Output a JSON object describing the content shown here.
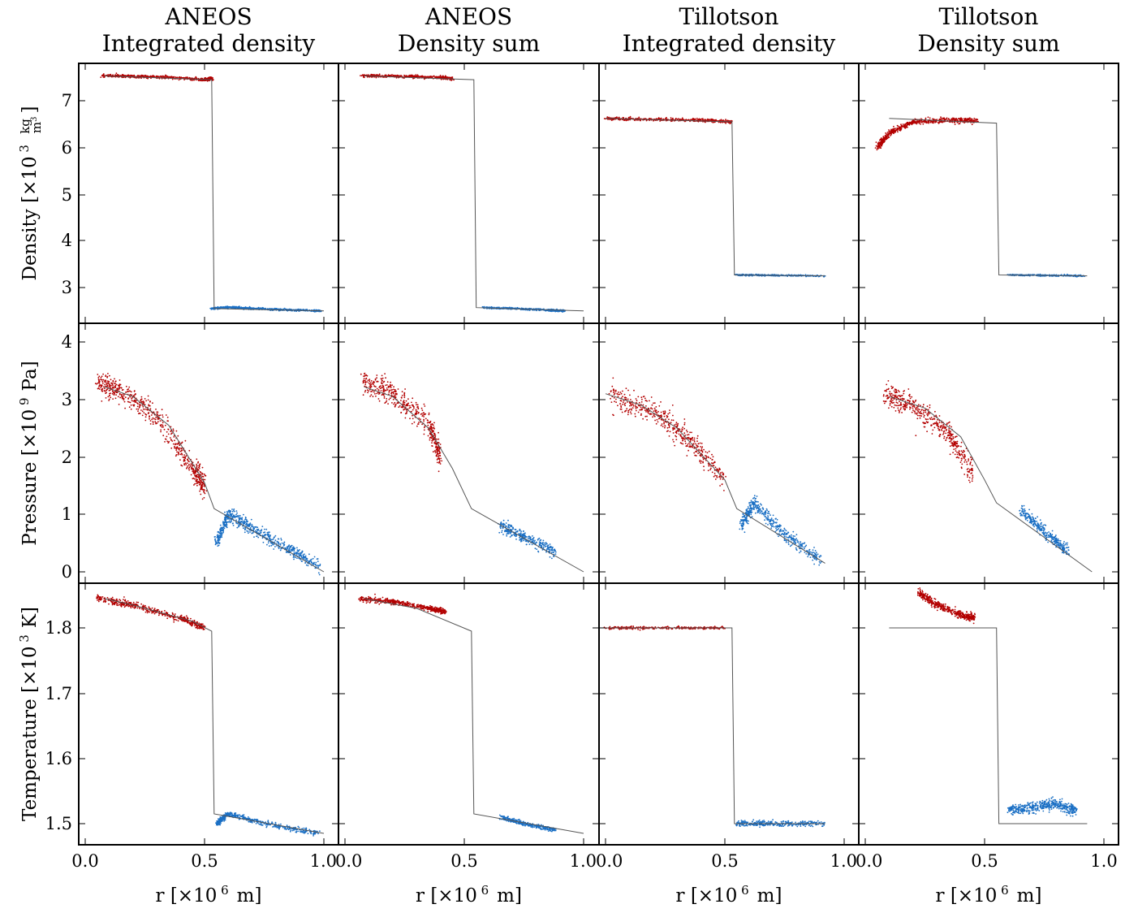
{
  "chart_data": {
    "type": "scatter",
    "columns": [
      {
        "title": [
          "ANEOS",
          "Integrated density"
        ]
      },
      {
        "title": [
          "ANEOS",
          "Density sum"
        ]
      },
      {
        "title": [
          "Tillotson",
          "Integrated density"
        ]
      },
      {
        "title": [
          "Tillotson",
          "Density sum"
        ]
      }
    ],
    "rows": [
      {
        "ylabel": "Density [×10 3  kg/m3]",
        "ylabel_main": "Density [×10",
        "ylabel_exp": "3",
        "ylabel_unit_num": "kg",
        "ylabel_unit_den": "m",
        "ylabel_unit_den_exp": "3",
        "yticks": [
          "3",
          "4",
          "5",
          "6",
          "7"
        ],
        "ylim": [
          2.3,
          7.75
        ]
      },
      {
        "ylabel": "Pressure [×10 9  Pa]",
        "ylabel_main": "Pressure [×10",
        "ylabel_exp": "9",
        "ylabel_unit": "Pa]",
        "yticks": [
          "0",
          "1",
          "2",
          "3",
          "4"
        ],
        "ylim": [
          -0.1,
          4.2
        ]
      },
      {
        "ylabel": "Temperature [×10 3  K]",
        "ylabel_main": "Temperature [×10",
        "ylabel_exp": "3",
        "ylabel_unit": "K]",
        "yticks": [
          "1.5",
          "1.6",
          "1.7",
          "1.8"
        ],
        "ylim": [
          1.47,
          1.86
        ]
      }
    ],
    "xlabel": "r [×10 6  m]",
    "xlabel_main": "r [×10",
    "xlabel_exp": "6",
    "xlabel_unit": "m]",
    "xticks": [
      "0.0",
      "0.5",
      "1.0"
    ],
    "xlim": [
      -0.02,
      1.03
    ],
    "colors": {
      "inner": "#b30000",
      "outer": "#1a6fc4",
      "reference": "#555555"
    },
    "series_desc": [
      "inner particles (red)",
      "outer particles (blue)",
      "reference profile (gray line)"
    ],
    "panels": [
      [
        {
          "ref": [
            [
              0.08,
              7.53
            ],
            [
              0.53,
              7.45
            ],
            [
              0.54,
              2.55
            ],
            [
              1.0,
              2.5
            ]
          ],
          "red": [
            [
              0.07,
              7.54
            ],
            [
              0.2,
              7.52
            ],
            [
              0.35,
              7.5
            ],
            [
              0.5,
              7.45
            ],
            [
              0.53,
              7.48
            ]
          ],
          "red_spread": 0.03,
          "blue": [
            [
              0.53,
              2.55
            ],
            [
              0.6,
              2.58
            ],
            [
              0.7,
              2.55
            ],
            [
              0.85,
              2.52
            ],
            [
              0.99,
              2.5
            ]
          ],
          "blue_spread": 0.02
        },
        {
          "ref": [
            [
              0.08,
              7.53
            ],
            [
              0.54,
              7.45
            ],
            [
              0.55,
              2.57
            ],
            [
              1.0,
              2.5
            ]
          ],
          "red": [
            [
              0.07,
              7.54
            ],
            [
              0.25,
              7.52
            ],
            [
              0.4,
              7.5
            ],
            [
              0.45,
              7.47
            ]
          ],
          "red_spread": 0.03,
          "blue": [
            [
              0.58,
              2.57
            ],
            [
              0.7,
              2.55
            ],
            [
              0.85,
              2.52
            ],
            [
              0.92,
              2.5
            ]
          ],
          "blue_spread": 0.02
        },
        {
          "ref": [
            [
              0.0,
              6.62
            ],
            [
              0.53,
              6.55
            ],
            [
              0.54,
              3.27
            ],
            [
              0.92,
              3.25
            ]
          ],
          "red": [
            [
              0.0,
              6.62
            ],
            [
              0.2,
              6.6
            ],
            [
              0.4,
              6.58
            ],
            [
              0.53,
              6.55
            ]
          ],
          "red_spread": 0.03,
          "blue": [
            [
              0.54,
              3.27
            ],
            [
              0.7,
              3.26
            ],
            [
              0.92,
              3.25
            ]
          ],
          "blue_spread": 0.015
        },
        {
          "ref": [
            [
              0.1,
              6.62
            ],
            [
              0.55,
              6.52
            ],
            [
              0.56,
              3.27
            ],
            [
              0.93,
              3.25
            ]
          ],
          "red": [
            [
              0.05,
              6.0
            ],
            [
              0.1,
              6.3
            ],
            [
              0.2,
              6.55
            ],
            [
              0.35,
              6.58
            ],
            [
              0.47,
              6.57
            ]
          ],
          "red_spread": 0.06,
          "blue": [
            [
              0.6,
              3.27
            ],
            [
              0.75,
              3.26
            ],
            [
              0.92,
              3.25
            ]
          ],
          "blue_spread": 0.015
        }
      ],
      [
        {
          "ref": [
            [
              0.08,
              3.22
            ],
            [
              0.2,
              3.05
            ],
            [
              0.35,
              2.55
            ],
            [
              0.5,
              1.55
            ],
            [
              0.54,
              1.1
            ],
            [
              1.0,
              0.0
            ]
          ],
          "red": [
            [
              0.05,
              3.3
            ],
            [
              0.15,
              3.15
            ],
            [
              0.3,
              2.7
            ],
            [
              0.45,
              1.8
            ],
            [
              0.5,
              1.5
            ]
          ],
          "red_spread": 0.2,
          "blue": [
            [
              0.55,
              0.5
            ],
            [
              0.6,
              1.0
            ],
            [
              0.7,
              0.75
            ],
            [
              0.85,
              0.4
            ],
            [
              0.98,
              0.1
            ]
          ],
          "blue_spread": 0.12
        },
        {
          "ref": [
            [
              0.08,
              3.22
            ],
            [
              0.2,
              3.05
            ],
            [
              0.35,
              2.5
            ],
            [
              0.45,
              1.8
            ],
            [
              0.53,
              1.1
            ],
            [
              1.0,
              0.0
            ]
          ],
          "red": [
            [
              0.07,
              3.3
            ],
            [
              0.2,
              3.1
            ],
            [
              0.35,
              2.6
            ],
            [
              0.4,
              2.0
            ]
          ],
          "red_spread": 0.2,
          "blue": [
            [
              0.65,
              0.8
            ],
            [
              0.75,
              0.6
            ],
            [
              0.88,
              0.35
            ]
          ],
          "blue_spread": 0.1
        },
        {
          "ref": [
            [
              0.0,
              3.1
            ],
            [
              0.15,
              2.9
            ],
            [
              0.3,
              2.5
            ],
            [
              0.5,
              1.6
            ],
            [
              0.55,
              1.1
            ],
            [
              0.92,
              0.15
            ]
          ],
          "red": [
            [
              0.02,
              3.05
            ],
            [
              0.2,
              2.8
            ],
            [
              0.35,
              2.3
            ],
            [
              0.5,
              1.6
            ]
          ],
          "red_spread": 0.2,
          "blue": [
            [
              0.57,
              0.8
            ],
            [
              0.62,
              1.2
            ],
            [
              0.75,
              0.65
            ],
            [
              0.9,
              0.2
            ]
          ],
          "blue_spread": 0.12
        },
        {
          "ref": [
            [
              0.1,
              3.05
            ],
            [
              0.25,
              2.85
            ],
            [
              0.4,
              2.35
            ],
            [
              0.5,
              1.6
            ],
            [
              0.55,
              1.2
            ],
            [
              0.95,
              0.0
            ]
          ],
          "red": [
            [
              0.08,
              3.1
            ],
            [
              0.2,
              2.9
            ],
            [
              0.35,
              2.4
            ],
            [
              0.45,
              1.7
            ]
          ],
          "red_spread": 0.2,
          "blue": [
            [
              0.65,
              1.1
            ],
            [
              0.75,
              0.7
            ],
            [
              0.85,
              0.35
            ]
          ],
          "blue_spread": 0.1
        }
      ],
      [
        {
          "ref": [
            [
              0.08,
              1.845
            ],
            [
              0.2,
              1.835
            ],
            [
              0.45,
              1.81
            ],
            [
              0.53,
              1.795
            ],
            [
              0.54,
              1.515
            ],
            [
              1.0,
              1.485
            ]
          ],
          "red": [
            [
              0.05,
              1.845
            ],
            [
              0.2,
              1.835
            ],
            [
              0.4,
              1.815
            ],
            [
              0.5,
              1.8
            ]
          ],
          "red_spread": 0.005,
          "blue": [
            [
              0.55,
              1.5
            ],
            [
              0.6,
              1.515
            ],
            [
              0.75,
              1.5
            ],
            [
              0.98,
              1.485
            ]
          ],
          "blue_spread": 0.004
        },
        {
          "ref": [
            [
              0.08,
              1.845
            ],
            [
              0.3,
              1.83
            ],
            [
              0.53,
              1.795
            ],
            [
              0.54,
              1.515
            ],
            [
              1.0,
              1.485
            ]
          ],
          "red": [
            [
              0.06,
              1.845
            ],
            [
              0.2,
              1.84
            ],
            [
              0.35,
              1.83
            ],
            [
              0.42,
              1.825
            ]
          ],
          "red_spread": 0.004,
          "blue": [
            [
              0.65,
              1.51
            ],
            [
              0.75,
              1.5
            ],
            [
              0.88,
              1.49
            ]
          ],
          "blue_spread": 0.003
        },
        {
          "ref": [
            [
              0.0,
              1.8
            ],
            [
              0.53,
              1.8
            ],
            [
              0.54,
              1.5
            ],
            [
              0.92,
              1.5
            ]
          ],
          "red": [
            [
              0.0,
              1.8
            ],
            [
              0.25,
              1.8
            ],
            [
              0.5,
              1.8
            ]
          ],
          "red_spread": 0.002,
          "blue": [
            [
              0.55,
              1.5
            ],
            [
              0.7,
              1.5
            ],
            [
              0.92,
              1.5
            ]
          ],
          "blue_spread": 0.004
        },
        {
          "ref": [
            [
              0.1,
              1.8
            ],
            [
              0.55,
              1.8
            ],
            [
              0.56,
              1.5
            ],
            [
              0.93,
              1.5
            ]
          ],
          "red": [
            [
              0.22,
              1.855
            ],
            [
              0.3,
              1.835
            ],
            [
              0.4,
              1.82
            ],
            [
              0.46,
              1.815
            ]
          ],
          "red_spread": 0.006,
          "blue": [
            [
              0.6,
              1.52
            ],
            [
              0.7,
              1.525
            ],
            [
              0.8,
              1.53
            ],
            [
              0.88,
              1.52
            ]
          ],
          "blue_spread": 0.008
        }
      ]
    ]
  }
}
